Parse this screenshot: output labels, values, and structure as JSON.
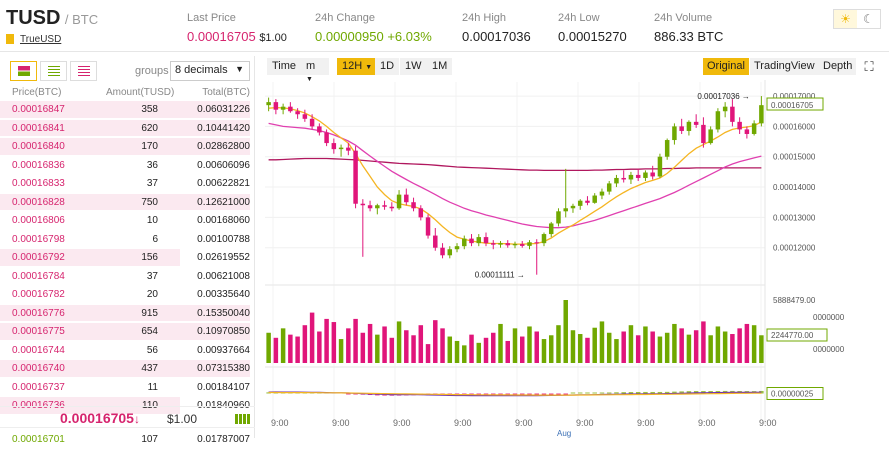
{
  "header": {
    "base": "TUSD",
    "quote": "/ BTC",
    "coin_name": "TrueUSD",
    "stats": [
      {
        "label": "Last Price",
        "value": "0.00016705",
        "extra": "$1.00",
        "color": "pink"
      },
      {
        "label": "24h Change",
        "value": "0.00000950",
        "extra": "+6.03%",
        "color": "green"
      },
      {
        "label": "24h High",
        "value": "0.00017036",
        "extra": "",
        "color": ""
      },
      {
        "label": "24h Low",
        "value": "0.00015270",
        "extra": "",
        "color": ""
      },
      {
        "label": "24h Volume",
        "value": "886.33 BTC",
        "extra": "",
        "color": ""
      }
    ],
    "theme_icons": [
      "sun-icon",
      "moon-icon"
    ]
  },
  "orderbook": {
    "groups_label": "groups",
    "groups_value": "8 decimals",
    "columns": [
      "Price(BTC)",
      "Amount(TUSD)",
      "Total(BTC)"
    ],
    "rows": [
      {
        "price": "0.00016847",
        "amount": "358",
        "total": "0.06031226",
        "depth": 1.0
      },
      {
        "price": "0.00016841",
        "amount": "620",
        "total": "0.10441420",
        "depth": 1.0
      },
      {
        "price": "0.00016840",
        "amount": "170",
        "total": "0.02862800",
        "depth": 1.0
      },
      {
        "price": "0.00016836",
        "amount": "36",
        "total": "0.00606096",
        "depth": 0.0
      },
      {
        "price": "0.00016833",
        "amount": "37",
        "total": "0.00622821",
        "depth": 0.0
      },
      {
        "price": "0.00016828",
        "amount": "750",
        "total": "0.12621000",
        "depth": 1.0
      },
      {
        "price": "0.00016806",
        "amount": "10",
        "total": "0.00168060",
        "depth": 0.0
      },
      {
        "price": "0.00016798",
        "amount": "6",
        "total": "0.00100788",
        "depth": 0.0
      },
      {
        "price": "0.00016792",
        "amount": "156",
        "total": "0.02619552",
        "depth": 0.72
      },
      {
        "price": "0.00016784",
        "amount": "37",
        "total": "0.00621008",
        "depth": 0.0
      },
      {
        "price": "0.00016782",
        "amount": "20",
        "total": "0.00335640",
        "depth": 0.0
      },
      {
        "price": "0.00016776",
        "amount": "915",
        "total": "0.15350040",
        "depth": 1.0
      },
      {
        "price": "0.00016775",
        "amount": "654",
        "total": "0.10970850",
        "depth": 1.0
      },
      {
        "price": "0.00016744",
        "amount": "56",
        "total": "0.00937664",
        "depth": 0.0
      },
      {
        "price": "0.00016740",
        "amount": "437",
        "total": "0.07315380",
        "depth": 1.0
      },
      {
        "price": "0.00016737",
        "amount": "11",
        "total": "0.00184107",
        "depth": 0.0
      },
      {
        "price": "0.00016736",
        "amount": "110",
        "total": "0.01840960",
        "depth": 0.72
      }
    ],
    "last_price": "0.00016705",
    "last_price_arrow": "↓",
    "last_price_usd": "$1.00",
    "cut_row": {
      "price": "0.00016701",
      "amount": "107",
      "total": "0.01787007"
    }
  },
  "chart": {
    "timeframes": [
      "Time",
      "m",
      "12H",
      "1D",
      "1W",
      "1M"
    ],
    "active_timeframe": "12H",
    "views": [
      "Original",
      "TradingView",
      "Depth"
    ],
    "active_view": "Original",
    "price_axis": [
      "0.00017000",
      "0.00016705",
      "0.00016000",
      "0.00015000",
      "0.00014000",
      "0.00013000",
      "0.00012000"
    ],
    "high_marker": "0.00017036",
    "low_marker": "0.00011111",
    "volume_axis": [
      "5888479.00",
      "0000000",
      "2244770.00",
      "0000000"
    ],
    "macd_label": "0.00000025",
    "time_labels": [
      "9:00",
      "9:00",
      "9:00",
      "9:00",
      "9:00",
      "9:00",
      "9:00",
      "9:00",
      "9:00"
    ],
    "month_label": "Aug"
  },
  "chart_data": {
    "type": "candlestick",
    "y_range": [
      0.000111,
      0.000172
    ],
    "candles": [
      [
        0.000167,
        0.0001695,
        0.000165,
        0.000168
      ],
      [
        0.000168,
        0.000169,
        0.000164,
        0.0001655
      ],
      [
        0.0001655,
        0.0001675,
        0.000164,
        0.0001665
      ],
      [
        0.0001665,
        0.000168,
        0.0001645,
        0.000165
      ],
      [
        0.000165,
        0.000166,
        0.0001625,
        0.000164
      ],
      [
        0.000164,
        0.0001655,
        0.0001615,
        0.0001625
      ],
      [
        0.0001625,
        0.000164,
        0.000159,
        0.00016
      ],
      [
        0.00016,
        0.000161,
        0.000157,
        0.000158
      ],
      [
        0.000158,
        0.000159,
        0.0001535,
        0.0001545
      ],
      [
        0.0001545,
        0.000156,
        0.000151,
        0.0001525
      ],
      [
        0.0001525,
        0.000154,
        0.00015,
        0.000153
      ],
      [
        0.000153,
        0.0001545,
        0.0001505,
        0.000152
      ],
      [
        0.000152,
        0.0001535,
        0.000133,
        0.0001345
      ],
      [
        0.0001345,
        0.000136,
        0.000117,
        0.000134
      ],
      [
        0.000134,
        0.0001355,
        0.000132,
        0.000133
      ],
      [
        0.000133,
        0.0001345,
        0.000131,
        0.000134
      ],
      [
        0.000134,
        0.0001355,
        0.0001325,
        0.0001335
      ],
      [
        0.0001335,
        0.000135,
        0.000132,
        0.000133
      ],
      [
        0.000133,
        0.000139,
        0.0001325,
        0.0001375
      ],
      [
        0.0001375,
        0.0001395,
        0.000134,
        0.000135
      ],
      [
        0.000135,
        0.0001365,
        0.000132,
        0.000133
      ],
      [
        0.000133,
        0.000134,
        0.000129,
        0.00013
      ],
      [
        0.00013,
        0.000131,
        0.000123,
        0.000124
      ],
      [
        0.000124,
        0.0001265,
        0.000119,
        0.00012
      ],
      [
        0.00012,
        0.0001215,
        0.0001165,
        0.0001175
      ],
      [
        0.0001175,
        0.0001205,
        0.0001165,
        0.0001195
      ],
      [
        0.0001195,
        0.0001215,
        0.0001185,
        0.0001205
      ],
      [
        0.0001205,
        0.000124,
        0.0001195,
        0.000123
      ],
      [
        0.000123,
        0.0001245,
        0.0001205,
        0.0001215
      ],
      [
        0.0001215,
        0.0001245,
        0.0001205,
        0.0001235
      ],
      [
        0.0001235,
        0.000125,
        0.0001205,
        0.0001215
      ],
      [
        0.0001215,
        0.0001225,
        0.0001195,
        0.000121
      ],
      [
        0.000121,
        0.0001222,
        0.00012,
        0.0001215
      ],
      [
        0.0001215,
        0.0001225,
        0.00012,
        0.0001208
      ],
      [
        0.0001208,
        0.000122,
        0.0001198,
        0.0001212
      ],
      [
        0.0001212,
        0.0001222,
        0.00012,
        0.0001206
      ],
      [
        0.0001206,
        0.0001225,
        0.0001195,
        0.0001218
      ],
      [
        0.0001218,
        0.0001228,
        0.0001111,
        0.0001215
      ],
      [
        0.0001215,
        0.000125,
        0.0001205,
        0.0001245
      ],
      [
        0.0001245,
        0.0001285,
        0.0001235,
        0.000128
      ],
      [
        0.000128,
        0.000133,
        0.000127,
        0.000132
      ],
      [
        0.000132,
        0.000146,
        0.00013,
        0.000133
      ],
      [
        0.000133,
        0.0001345,
        0.0001315,
        0.0001338
      ],
      [
        0.0001338,
        0.000136,
        0.0001325,
        0.0001355
      ],
      [
        0.0001355,
        0.000137,
        0.000134,
        0.0001348
      ],
      [
        0.0001348,
        0.000138,
        0.0001345,
        0.0001372
      ],
      [
        0.0001372,
        0.0001395,
        0.000136,
        0.0001385
      ],
      [
        0.0001385,
        0.000142,
        0.0001375,
        0.0001412
      ],
      [
        0.0001412,
        0.000144,
        0.00014,
        0.000143
      ],
      [
        0.000143,
        0.0001455,
        0.0001415,
        0.0001425
      ],
      [
        0.0001425,
        0.000145,
        0.000141,
        0.000144
      ],
      [
        0.000144,
        0.000146,
        0.000142,
        0.000143
      ],
      [
        0.000143,
        0.0001455,
        0.000142,
        0.0001448
      ],
      [
        0.0001448,
        0.000147,
        0.0001425,
        0.0001435
      ],
      [
        0.0001435,
        0.000151,
        0.000143,
        0.00015
      ],
      [
        0.00015,
        0.000156,
        0.000149,
        0.0001555
      ],
      [
        0.0001555,
        0.000161,
        0.000154,
        0.00016
      ],
      [
        0.00016,
        0.0001625,
        0.0001575,
        0.0001585
      ],
      [
        0.0001585,
        0.000162,
        0.000157,
        0.0001615
      ],
      [
        0.0001615,
        0.000164,
        0.0001595,
        0.0001605
      ],
      [
        0.0001605,
        0.000163,
        0.000153,
        0.0001545
      ],
      [
        0.0001545,
        0.00016,
        0.000154,
        0.000159
      ],
      [
        0.000159,
        0.000166,
        0.000158,
        0.000165
      ],
      [
        0.000165,
        0.000168,
        0.000163,
        0.0001665
      ],
      [
        0.0001665,
        0.000169,
        0.00016,
        0.0001615
      ],
      [
        0.0001615,
        0.000163,
        0.0001575,
        0.000159
      ],
      [
        0.000159,
        0.00016,
        0.000156,
        0.0001575
      ],
      [
        0.0001575,
        0.000162,
        0.000157,
        0.000161
      ],
      [
        0.000161,
        0.00017,
        0.00016,
        0.000167
      ]
    ],
    "volumes": [
      0.48,
      0.4,
      0.55,
      0.45,
      0.42,
      0.6,
      0.8,
      0.5,
      0.7,
      0.65,
      0.38,
      0.55,
      0.7,
      0.48,
      0.62,
      0.45,
      0.58,
      0.4,
      0.66,
      0.52,
      0.44,
      0.6,
      0.3,
      0.68,
      0.55,
      0.42,
      0.35,
      0.28,
      0.45,
      0.32,
      0.4,
      0.48,
      0.62,
      0.35,
      0.55,
      0.42,
      0.58,
      0.5,
      0.38,
      0.44,
      0.6,
      1.0,
      0.52,
      0.46,
      0.4,
      0.56,
      0.66,
      0.48,
      0.38,
      0.5,
      0.6,
      0.44,
      0.58,
      0.5,
      0.42,
      0.48,
      0.62,
      0.55,
      0.45,
      0.52,
      0.66,
      0.44,
      0.58,
      0.5,
      0.46,
      0.55,
      0.62,
      0.6,
      0.44
    ],
    "ma_fast": [
      0.000166,
      0.0001662,
      0.0001661,
      0.0001658,
      0.0001652,
      0.0001644,
      0.0001632,
      0.0001618,
      0.00016,
      0.000158,
      0.0001562,
      0.0001545,
      0.000151,
      0.000147,
      0.0001435,
      0.00014,
      0.0001375,
      0.0001355,
      0.0001345,
      0.000134,
      0.0001336,
      0.0001328,
      0.0001312,
      0.0001292,
      0.000127,
      0.000125,
      0.0001235,
      0.0001228,
      0.0001222,
      0.0001218,
      0.0001215,
      0.0001214,
      0.0001214,
      0.0001213,
      0.0001212,
      0.0001212,
      0.0001213,
      0.0001214,
      0.000122,
      0.0001232,
      0.0001248,
      0.0001262,
      0.0001275,
      0.000129,
      0.0001305,
      0.000132,
      0.0001335,
      0.0001352,
      0.0001368,
      0.0001382,
      0.0001395,
      0.0001405,
      0.0001415,
      0.0001422,
      0.000143,
      0.0001445,
      0.0001465,
      0.0001488,
      0.000151,
      0.0001528,
      0.000154,
      0.0001552,
      0.0001565,
      0.000158,
      0.000159,
      0.0001595,
      0.0001598,
      0.0001602,
      0.0001615
    ],
    "ma_mid": [
      0.000161,
      0.0001605,
      0.00016,
      0.0001598,
      0.0001596,
      0.0001594,
      0.000159,
      0.0001586,
      0.000158,
      0.0001572,
      0.0001562,
      0.0001552,
      0.0001538,
      0.000152,
      0.0001502,
      0.0001485,
      0.0001468,
      0.0001452,
      0.0001438,
      0.0001425,
      0.0001412,
      0.00014,
      0.0001388,
      0.0001375,
      0.0001362,
      0.000135,
      0.000134,
      0.000133,
      0.0001322,
      0.0001315,
      0.0001308,
      0.0001302,
      0.0001296,
      0.000129,
      0.0001284,
      0.0001278,
      0.0001274,
      0.000127,
      0.0001268,
      0.0001266,
      0.0001266,
      0.0001268,
      0.0001272,
      0.0001278,
      0.0001284,
      0.000129,
      0.0001298,
      0.0001306,
      0.0001314,
      0.0001322,
      0.000133,
      0.0001338,
      0.0001346,
      0.0001354,
      0.0001362,
      0.0001372,
      0.0001382,
      0.0001394,
      0.0001406,
      0.0001418,
      0.000143,
      0.0001442,
      0.0001454,
      0.0001466,
      0.0001476,
      0.0001484,
      0.000149,
      0.0001496,
      0.0001502
    ],
    "ma_slow": [
      0.000149,
      0.000149,
      0.0001491,
      0.0001492,
      0.0001493,
      0.0001494,
      0.0001494,
      0.0001494,
      0.0001494,
      0.0001493,
      0.0001492,
      0.0001491,
      0.000149,
      0.0001488,
      0.0001486,
      0.0001484,
      0.0001482,
      0.000148,
      0.0001478,
      0.0001477,
      0.0001476,
      0.0001475,
      0.0001474,
      0.0001472,
      0.000147,
      0.0001468,
      0.0001466,
      0.0001465,
      0.0001464,
      0.0001463,
      0.0001462,
      0.0001461,
      0.000146,
      0.0001459,
      0.0001458,
      0.0001457,
      0.0001456,
      0.0001456,
      0.0001455,
      0.0001455,
      0.0001455,
      0.0001455,
      0.0001455,
      0.0001455,
      0.0001455,
      0.0001456,
      0.0001456,
      0.0001457,
      0.0001458,
      0.0001458,
      0.0001459,
      0.0001459,
      0.000146,
      0.000146,
      0.000146,
      0.0001461,
      0.0001461,
      0.0001462,
      0.0001462,
      0.0001463,
      0.0001463,
      0.0001463,
      0.0001463,
      0.0001463,
      0.0001463,
      0.0001463,
      0.0001463,
      0.0001463,
      0.0001463
    ]
  }
}
